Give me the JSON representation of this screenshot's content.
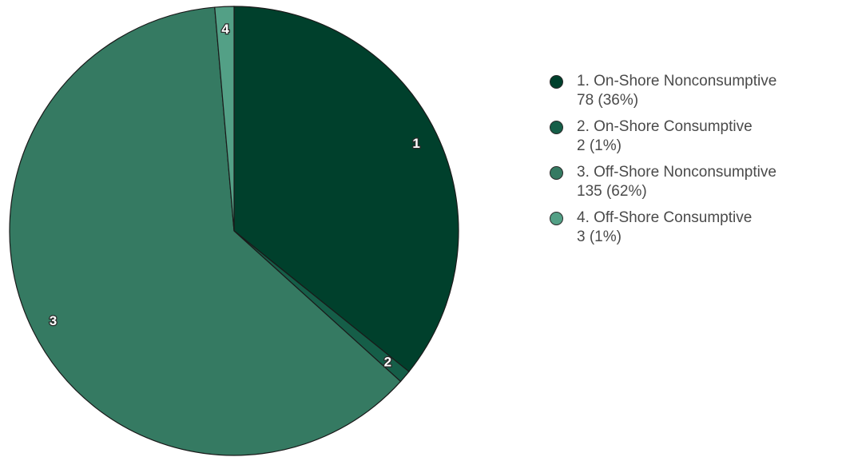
{
  "chart_data": {
    "type": "pie",
    "title": "",
    "legend_position": "right",
    "slices": [
      {
        "label": "1",
        "name": "1. On-Shore Nonconsumptive",
        "value": 78,
        "value_text": "78 (36%)",
        "color": "#00402c"
      },
      {
        "label": "2",
        "name": "2. On-Shore Consumptive",
        "value": 2,
        "value_text": "2 (1%)",
        "color": "#155e48"
      },
      {
        "label": "3",
        "name": "3. Off-Shore Nonconsumptive",
        "value": 135,
        "value_text": "135 (62%)",
        "color": "#357a62"
      },
      {
        "label": "4",
        "name": "4. Off-Shore Consumptive",
        "value": 3,
        "value_text": "3 (1%)",
        "color": "#53a086"
      }
    ]
  }
}
